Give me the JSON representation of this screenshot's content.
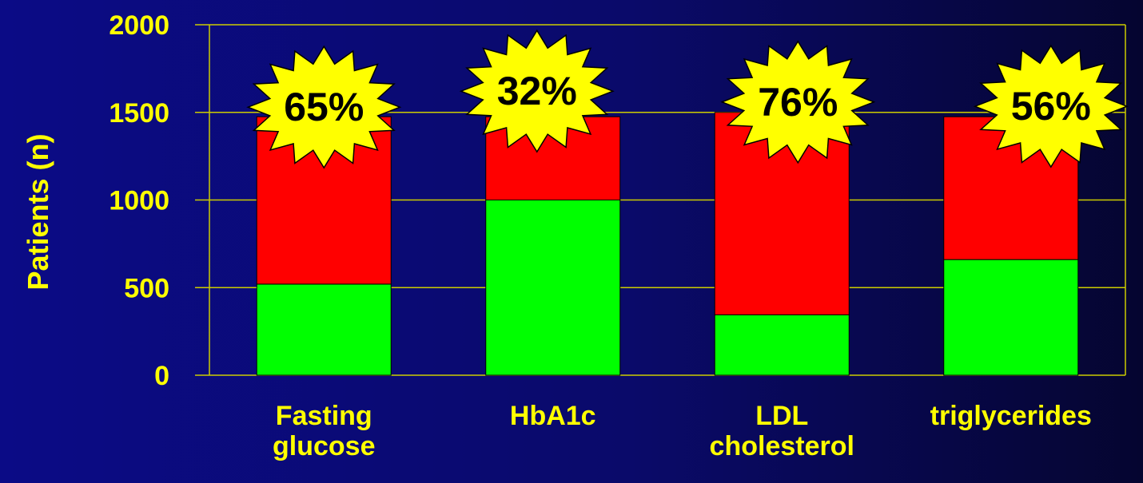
{
  "chart_data": {
    "type": "bar",
    "stacked": true,
    "categories": [
      [
        "Fasting",
        "glucose"
      ],
      [
        "HbA1c"
      ],
      [
        "LDL",
        "cholesterol"
      ],
      [
        "triglycerides"
      ]
    ],
    "series": [
      {
        "color": "#00ff00",
        "values": [
          520,
          1000,
          345,
          660
        ]
      },
      {
        "color": "#ff0000",
        "values": [
          955,
          475,
          1155,
          815
        ]
      }
    ],
    "annotations": [
      "65%",
      "32%",
      "76%",
      "56%"
    ],
    "ylabel": "Patients (n)",
    "ylim": [
      0,
      2000
    ],
    "yticks": [
      "0",
      "500",
      "1000",
      "1500",
      "2000"
    ],
    "ytick_values": [
      0,
      500,
      1000,
      1500,
      2000
    ],
    "grid": true,
    "colors": {
      "text": "#ffff00",
      "grid": "#cccc00",
      "burst_fill": "#ffff00",
      "burst_stroke": "#000000"
    }
  }
}
